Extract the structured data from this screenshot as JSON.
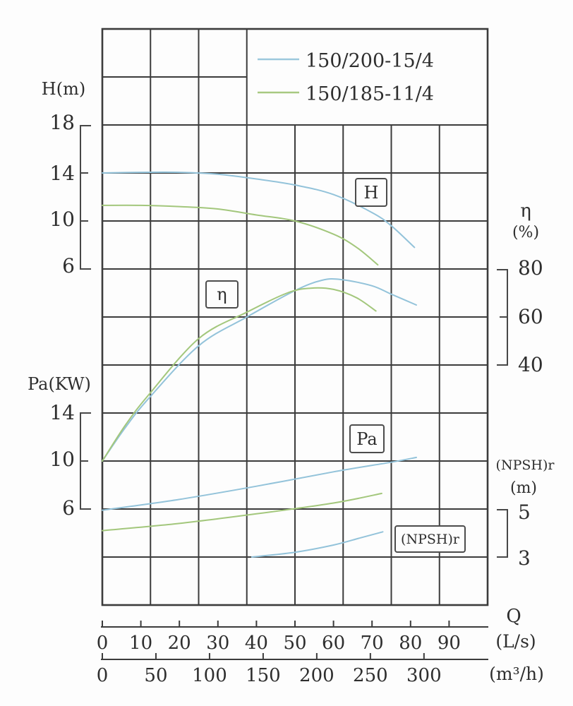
{
  "legend": {
    "items": [
      {
        "label": "150/200-15/4",
        "color": "#9cc8dd"
      },
      {
        "label": "150/185-11/4",
        "color": "#a8c981"
      }
    ]
  },
  "labels": {
    "h_axis_title": "H(m)",
    "pa_axis_title": "Pa(KW)",
    "eta_axis_title": "η",
    "eta_axis_unit": "(%)",
    "npsh_axis_title": "(NPSH)r",
    "npsh_axis_unit": "(m)",
    "q_axis_title": "Q",
    "q_ls_unit": "(L/s)",
    "q_m3h_unit": "(m³/h)"
  },
  "curve_labels": {
    "h": "H",
    "eta": "η",
    "pa": "Pa",
    "npsh": "(NPSH)r"
  },
  "ticks": {
    "h": [
      "18",
      "14",
      "10",
      "6"
    ],
    "pa": [
      "14",
      "10",
      "6"
    ],
    "eta": [
      "80",
      "60",
      "40"
    ],
    "npsh": [
      "5",
      "3"
    ],
    "q_ls": [
      "0",
      "10",
      "20",
      "30",
      "40",
      "50",
      "60",
      "70",
      "80",
      "90"
    ],
    "q_m3h": [
      "0",
      "50",
      "100",
      "150",
      "200",
      "250",
      "300"
    ]
  },
  "chart_data": {
    "type": "line",
    "title": "",
    "x_axes": [
      {
        "name": "Q",
        "unit": "L/s",
        "range": [
          0,
          100
        ],
        "ticks": [
          0,
          10,
          20,
          30,
          40,
          50,
          60,
          70,
          80,
          90
        ]
      },
      {
        "name": "Q",
        "unit": "m³/h",
        "range": [
          0,
          360
        ],
        "ticks": [
          0,
          50,
          100,
          150,
          200,
          250,
          300
        ]
      }
    ],
    "y_axes": [
      {
        "name": "H",
        "unit": "m",
        "ticks": [
          6,
          10,
          14,
          18
        ]
      },
      {
        "name": "η",
        "unit": "%",
        "ticks": [
          40,
          60,
          80
        ]
      },
      {
        "name": "Pa",
        "unit": "KW",
        "ticks": [
          6,
          10,
          14
        ]
      },
      {
        "name": "(NPSH)r",
        "unit": "m",
        "ticks": [
          3,
          5
        ]
      }
    ],
    "grid": true,
    "legend_position": "top-right",
    "series": [
      {
        "id": "h-150-200-15-4",
        "pump": "150/200-15/4",
        "quantity": "H (m)",
        "axis": "H",
        "color": "#93c3da",
        "points": [
          [
            0,
            14
          ],
          [
            10,
            14.05
          ],
          [
            20,
            14.05
          ],
          [
            30,
            13.9
          ],
          [
            40,
            13.5
          ],
          [
            50,
            13.0
          ],
          [
            60,
            12.2
          ],
          [
            70,
            10.7
          ],
          [
            75,
            9.6
          ],
          [
            81,
            7.8
          ]
        ]
      },
      {
        "id": "h-150-185-11-4",
        "pump": "150/185-11/4",
        "quantity": "H (m)",
        "axis": "H",
        "color": "#a3c77c",
        "points": [
          [
            0,
            11.3
          ],
          [
            10,
            11.3
          ],
          [
            20,
            11.2
          ],
          [
            30,
            11.0
          ],
          [
            40,
            10.5
          ],
          [
            50,
            10.0
          ],
          [
            60,
            8.9
          ],
          [
            66,
            7.8
          ],
          [
            71.5,
            6.35
          ]
        ]
      },
      {
        "id": "eta-150-200-15-4",
        "pump": "150/200-15/4",
        "quantity": "η (%)",
        "axis": "eta",
        "color": "#93c3da",
        "points": [
          [
            0,
            0
          ],
          [
            6,
            14
          ],
          [
            12,
            26
          ],
          [
            25,
            48
          ],
          [
            37.5,
            60
          ],
          [
            50,
            71
          ],
          [
            57,
            75.3
          ],
          [
            62,
            75.6
          ],
          [
            70,
            73
          ],
          [
            75,
            69.5
          ],
          [
            81.5,
            65
          ]
        ]
      },
      {
        "id": "eta-150-185-11-4",
        "pump": "150/185-11/4",
        "quantity": "η (%)",
        "axis": "eta",
        "color": "#a3c77c",
        "points": [
          [
            0,
            0
          ],
          [
            6,
            15
          ],
          [
            12,
            27.5
          ],
          [
            25,
            51
          ],
          [
            37.5,
            62
          ],
          [
            48,
            70
          ],
          [
            54,
            72
          ],
          [
            60,
            71.5
          ],
          [
            66,
            68
          ],
          [
            71,
            62.5
          ]
        ]
      },
      {
        "id": "pa-150-200-15-4",
        "pump": "150/200-15/4",
        "quantity": "Pa (KW)",
        "axis": "Pa",
        "color": "#93c3da",
        "points": [
          [
            0,
            5.9
          ],
          [
            20,
            6.8
          ],
          [
            40,
            7.9
          ],
          [
            60,
            9.1
          ],
          [
            75,
            9.9
          ],
          [
            81.5,
            10.3
          ]
        ]
      },
      {
        "id": "pa-150-185-11-4",
        "pump": "150/185-11/4",
        "quantity": "Pa (KW)",
        "axis": "Pa",
        "color": "#a3c77c",
        "points": [
          [
            0,
            4.2
          ],
          [
            20,
            4.8
          ],
          [
            40,
            5.6
          ],
          [
            60,
            6.5
          ],
          [
            72.5,
            7.3
          ]
        ]
      },
      {
        "id": "npsh-150-200-15-4",
        "pump": "150/200-15/4",
        "quantity": "(NPSH)r (m)",
        "axis": "NPSH",
        "color": "#93c3da",
        "points": [
          [
            38.8,
            3.0
          ],
          [
            50,
            3.2
          ],
          [
            60,
            3.5
          ],
          [
            67,
            3.8
          ],
          [
            72.8,
            4.05
          ]
        ]
      }
    ]
  }
}
